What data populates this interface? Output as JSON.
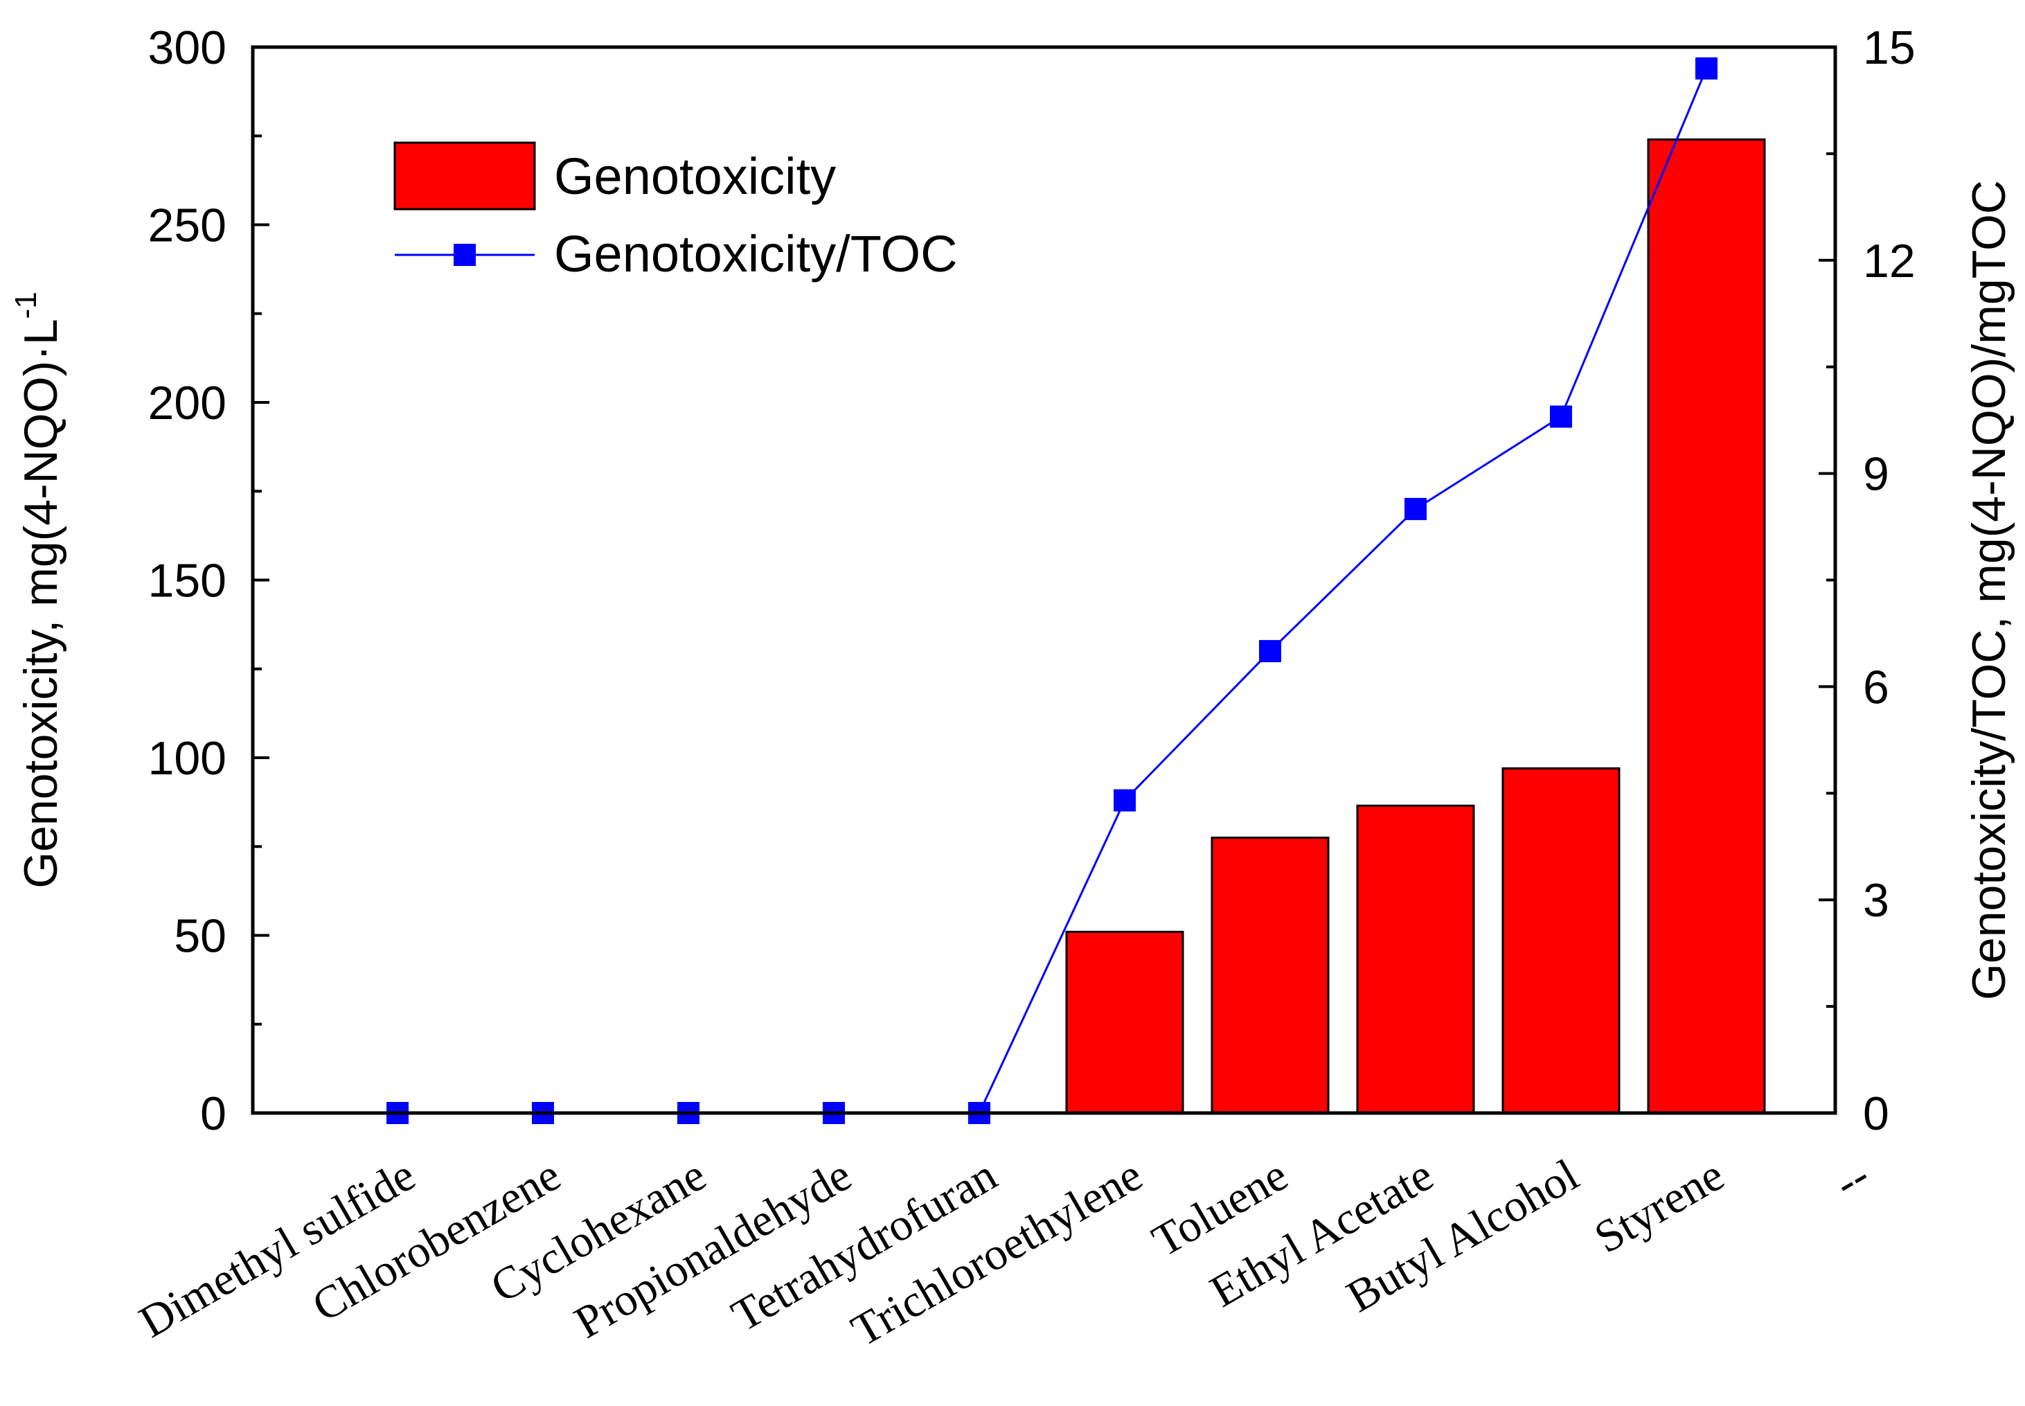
{
  "chart_data": {
    "type": "bar",
    "categories": [
      "Dimethyl sulfide",
      "Chlorobenzene",
      "Cyclohexane",
      "Propionaldehyde",
      "Tetrahydrofuran",
      "Trichloroethylene",
      "Toluene",
      "Ethyl Acetate",
      "Butyl Alcohol",
      "Styrene",
      "--"
    ],
    "series": [
      {
        "name": "Genotoxicity",
        "type": "bar",
        "axis": "left",
        "color": "#ff0000",
        "values": [
          0,
          0,
          0,
          0,
          0,
          51,
          77.5,
          86.5,
          97,
          274,
          null
        ]
      },
      {
        "name": "Genotoxicity/TOC",
        "type": "line",
        "axis": "right",
        "color": "#0000ff",
        "marker": "square",
        "values": [
          0,
          0,
          0,
          0,
          0,
          4.4,
          6.5,
          8.5,
          9.8,
          14.7,
          null
        ]
      }
    ],
    "ylabel_main": "Genotoxicity, mg(4-NQO)·L",
    "ylabel_sup": "-1",
    "y2label": "Genotoxicity/TOC, mg(4-NQO)/mgTOC",
    "ylim": [
      0,
      300
    ],
    "y2lim": [
      0,
      15
    ],
    "yticks": [
      0,
      50,
      100,
      150,
      200,
      250,
      300
    ],
    "y2ticks": [
      0,
      3,
      6,
      9,
      12,
      15
    ],
    "grid": false,
    "legend_position": "top-left"
  }
}
